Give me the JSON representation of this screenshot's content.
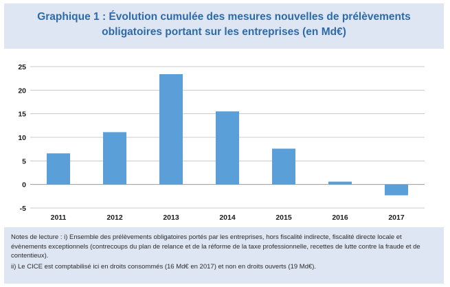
{
  "header": {
    "title_line1": "Graphique 1 : Évolution cumulée des mesures nouvelles de prélèvements",
    "title_line2": "obligatoires portant sur les entreprises (en Md€)"
  },
  "chart_data": {
    "type": "bar",
    "categories": [
      "2011",
      "2012",
      "2013",
      "2014",
      "2015",
      "2016",
      "2017"
    ],
    "values": [
      6.6,
      11.1,
      23.4,
      15.5,
      7.6,
      0.6,
      -2.3
    ],
    "yticks": [
      -5,
      0,
      5,
      10,
      15,
      20,
      25
    ],
    "ylim": [
      -5,
      25
    ],
    "grid": true,
    "bar_color": "#5b9fd8",
    "title": "",
    "xlabel": "",
    "ylabel": ""
  },
  "notes": {
    "line1": "Notes de lecture : i) Ensemble des prélèvements obligatoires portés par les entreprises, hors fiscalité indirecte, fiscalité directe locale et évènements exceptionnels (contrecoups du plan de relance et de la réforme de la taxe professionnelle, recettes de lutte contre la fraude et de contentieux).",
    "line2": "ii) Le CICE est comptabilisé ici en droits consommés (16 Md€ en 2017) et non en droits ouverts (19 Md€)."
  }
}
